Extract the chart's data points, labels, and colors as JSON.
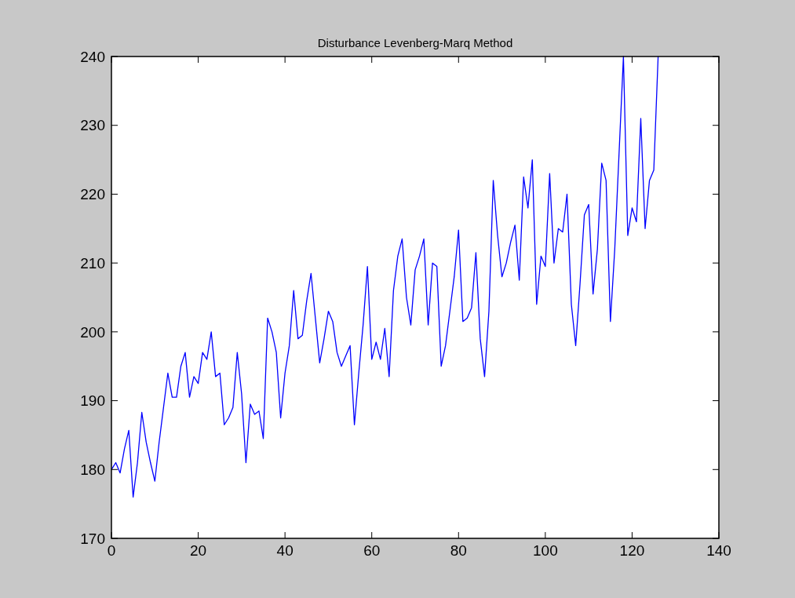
{
  "chart_data": {
    "type": "line",
    "title": "Disturbance Levenberg-Marq Method",
    "x": [
      0,
      1,
      2,
      3,
      4,
      5,
      6,
      7,
      8,
      9,
      10,
      11,
      12,
      13,
      14,
      15,
      16,
      17,
      18,
      19,
      20,
      21,
      22,
      23,
      24,
      25,
      26,
      27,
      28,
      29,
      30,
      31,
      32,
      33,
      34,
      35,
      36,
      37,
      38,
      39,
      40,
      41,
      42,
      43,
      44,
      45,
      46,
      47,
      48,
      49,
      50,
      51,
      52,
      53,
      54,
      55,
      56,
      57,
      58,
      59,
      60,
      61,
      62,
      63,
      64,
      65,
      66,
      67,
      68,
      69,
      70,
      71,
      72,
      73,
      74,
      75,
      76,
      77,
      78,
      79,
      80,
      81,
      82,
      83,
      84,
      85,
      86,
      87,
      88,
      89,
      90,
      91,
      92,
      93,
      94,
      95,
      96,
      97,
      98,
      99,
      100,
      101,
      102,
      103,
      104,
      105,
      106,
      107,
      108,
      109,
      110,
      111,
      112,
      113,
      114,
      115,
      116,
      117,
      118,
      119,
      120,
      121,
      122,
      123,
      124,
      125,
      126
    ],
    "series": [
      {
        "color": "#0000ff",
        "values": [
          180,
          181,
          179.5,
          183,
          185.7,
          176,
          181,
          188.3,
          184,
          181,
          178.3,
          184,
          189,
          194,
          190.5,
          190.5,
          195,
          197,
          190.5,
          193.5,
          192.5,
          197,
          196,
          200,
          193.5,
          194,
          186.5,
          187.5,
          189,
          197,
          191,
          181,
          189.5,
          188,
          188.5,
          184.5,
          202,
          200,
          197,
          187.5,
          194,
          198,
          206,
          199,
          199.5,
          204.5,
          208.5,
          202,
          195.5,
          199,
          203,
          201.5,
          197,
          195,
          196.5,
          198,
          186.5,
          194,
          201,
          209.5,
          196,
          198.5,
          196,
          200.5,
          193.5,
          206,
          211,
          213.5,
          205,
          201,
          209,
          211,
          213.5,
          201,
          210,
          209.5,
          195,
          198,
          203,
          208,
          214.8,
          201.5,
          202,
          203.5,
          211.5,
          199,
          193.5,
          203,
          222,
          214,
          208,
          210,
          213,
          215.5,
          207.5,
          222.5,
          218,
          225,
          204,
          211,
          209.5,
          223,
          210,
          215,
          214.5,
          220,
          204,
          198,
          207,
          217,
          218.5,
          205.5,
          212,
          224.5,
          222,
          201.5,
          212,
          226,
          240,
          214,
          218,
          216,
          231,
          215,
          222,
          223.5,
          240
        ]
      }
    ],
    "xlim": [
      0,
      140
    ],
    "xticks": [
      0,
      20,
      40,
      60,
      80,
      100,
      120,
      140
    ],
    "ylim": [
      170,
      240
    ],
    "yticks": [
      170,
      180,
      190,
      200,
      210,
      220,
      230,
      240
    ],
    "grid": false,
    "line_style": "solid",
    "marker": "none"
  }
}
